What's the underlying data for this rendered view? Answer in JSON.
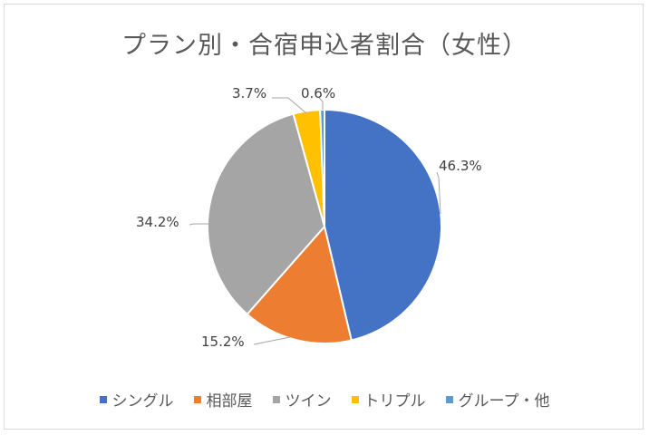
{
  "chart_data": {
    "type": "pie",
    "title": "プラン別・合宿申込者割合（女性）",
    "categories": [
      "シングル",
      "相部屋",
      "ツイン",
      "トリプル",
      "グループ・他"
    ],
    "values": [
      46.3,
      15.2,
      34.2,
      3.7,
      0.6
    ],
    "labels": [
      "46.3%",
      "15.2%",
      "34.2%",
      "3.7%",
      "0.6%"
    ],
    "colors": [
      "#4472c4",
      "#ed7d31",
      "#a5a5a5",
      "#ffc000",
      "#5b9bd5"
    ],
    "legend": "bottom"
  }
}
